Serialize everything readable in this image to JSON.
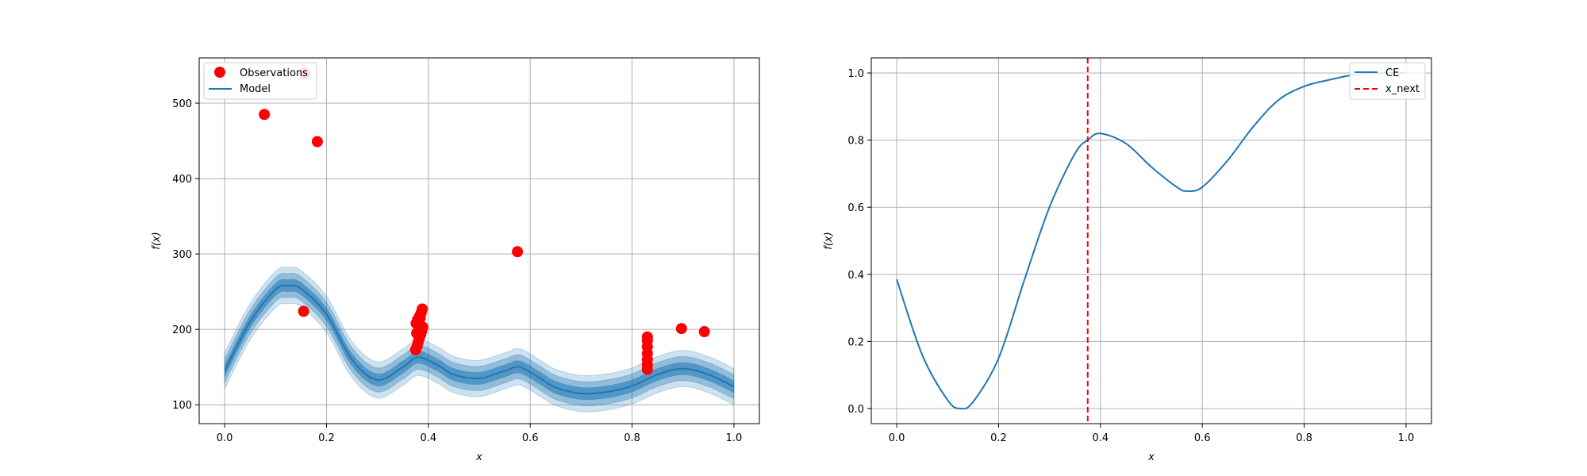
{
  "chart_data": [
    {
      "type": "line",
      "xlabel": "x",
      "ylabel": "f(x)",
      "xlim": [
        -0.05,
        1.05
      ],
      "ylim": [
        75,
        560
      ],
      "xticks": [
        0.0,
        0.2,
        0.4,
        0.6,
        0.8,
        1.0
      ],
      "xtick_labels": [
        "0.0",
        "0.2",
        "0.4",
        "0.6",
        "0.8",
        "1.0"
      ],
      "yticks": [
        100,
        200,
        300,
        400,
        500
      ],
      "ytick_labels": [
        "100",
        "200",
        "300",
        "400",
        "500"
      ],
      "grid": true,
      "legend_position": "upper-left",
      "legend": [
        {
          "label": "Observations",
          "marker": "dot",
          "color": "#ff0000"
        },
        {
          "label": "Model",
          "marker": "line",
          "color": "#1f77b4"
        }
      ],
      "series": [
        {
          "name": "Model",
          "color": "#1f77b4",
          "x": [
            0.0,
            0.05,
            0.1,
            0.125,
            0.15,
            0.2,
            0.25,
            0.3,
            0.35,
            0.38,
            0.42,
            0.45,
            0.5,
            0.55,
            0.58,
            0.62,
            0.65,
            0.7,
            0.75,
            0.8,
            0.85,
            0.9,
            0.95,
            1.0
          ],
          "y": [
            145,
            210,
            253,
            258,
            254,
            220,
            160,
            133,
            150,
            163,
            152,
            140,
            135,
            145,
            150,
            135,
            123,
            115,
            117,
            125,
            140,
            148,
            140,
            124
          ],
          "band_halfwidths": [
            8,
            16,
            24
          ]
        },
        {
          "name": "Observations",
          "color": "#ff0000",
          "x": [
            0.078,
            0.157,
            0.182,
            0.155,
            0.575,
            0.375,
            0.378,
            0.38,
            0.382,
            0.385,
            0.387,
            0.389,
            0.376,
            0.379,
            0.383,
            0.386,
            0.388,
            0.377,
            0.381,
            0.384,
            0.83,
            0.83,
            0.83,
            0.83,
            0.83,
            0.83,
            0.83,
            0.897,
            0.942
          ],
          "y": [
            485,
            540,
            449,
            224,
            303,
            173,
            178,
            183,
            188,
            193,
            198,
            203,
            208,
            213,
            218,
            222,
            227,
            195,
            205,
            215,
            147,
            153,
            160,
            168,
            177,
            185,
            190,
            201,
            197
          ]
        }
      ]
    },
    {
      "type": "line",
      "xlabel": "x",
      "ylabel": "f(x)",
      "xlim": [
        -0.05,
        1.05
      ],
      "ylim": [
        -0.045,
        1.045
      ],
      "xticks": [
        0.0,
        0.2,
        0.4,
        0.6,
        0.8,
        1.0
      ],
      "xtick_labels": [
        "0.0",
        "0.2",
        "0.4",
        "0.6",
        "0.8",
        "1.0"
      ],
      "yticks": [
        0.0,
        0.2,
        0.4,
        0.6,
        0.8,
        1.0
      ],
      "ytick_labels": [
        "0.0",
        "0.2",
        "0.4",
        "0.6",
        "0.8",
        "1.0"
      ],
      "grid": true,
      "legend_position": "upper-right",
      "legend": [
        {
          "label": "CE",
          "marker": "line",
          "color": "#1f77b4"
        },
        {
          "label": "x_next",
          "marker": "dashed",
          "color": "#ff0000"
        }
      ],
      "series": [
        {
          "name": "CE",
          "color": "#1f77b4",
          "x": [
            0.0,
            0.05,
            0.1,
            0.125,
            0.15,
            0.2,
            0.25,
            0.3,
            0.35,
            0.375,
            0.4,
            0.45,
            0.5,
            0.55,
            0.57,
            0.6,
            0.65,
            0.7,
            0.75,
            0.8,
            0.85,
            0.9,
            0.95,
            1.0
          ],
          "y": [
            0.385,
            0.16,
            0.025,
            0.0,
            0.02,
            0.15,
            0.38,
            0.6,
            0.76,
            0.8,
            0.82,
            0.79,
            0.72,
            0.66,
            0.648,
            0.66,
            0.74,
            0.84,
            0.92,
            0.96,
            0.98,
            0.995,
            1.0,
            1.0
          ]
        },
        {
          "name": "x_next",
          "color": "#ff0000",
          "vline_x": 0.375,
          "dashed": true
        }
      ]
    }
  ]
}
